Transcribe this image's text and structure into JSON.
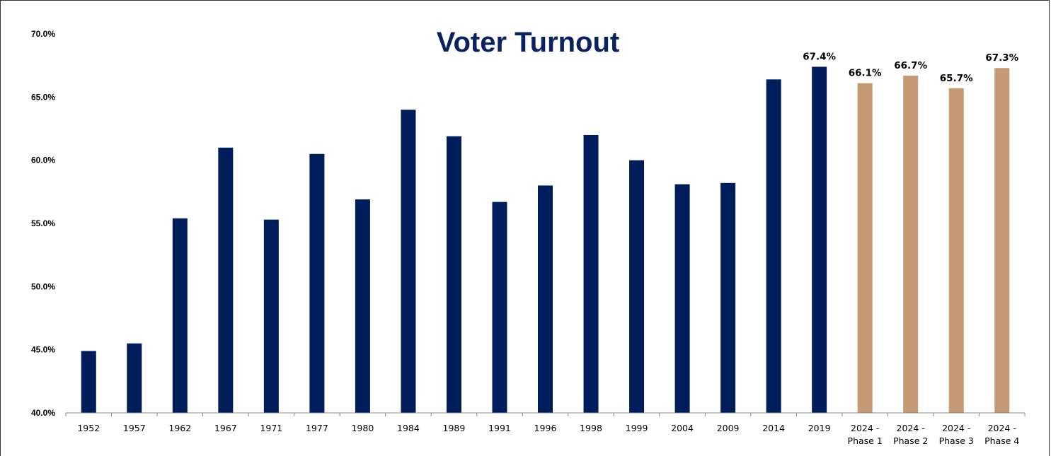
{
  "chart_data": {
    "type": "bar",
    "title": "Voter Turnout",
    "xlabel": "",
    "ylabel": "",
    "ylim": [
      40,
      70
    ],
    "yticks": [
      "40.0%",
      "45.0%",
      "50.0%",
      "55.0%",
      "60.0%",
      "65.0%",
      "70.0%"
    ],
    "ytick_values": [
      40,
      45,
      50,
      55,
      60,
      65,
      70
    ],
    "grid": false,
    "colors": {
      "historic": "#001d5b",
      "phase": "#c49a72",
      "title": "#0b2260"
    },
    "categories": [
      [
        "1952"
      ],
      [
        "1957"
      ],
      [
        "1962"
      ],
      [
        "1967"
      ],
      [
        "1971"
      ],
      [
        "1977"
      ],
      [
        "1980"
      ],
      [
        "1984"
      ],
      [
        "1989"
      ],
      [
        "1991"
      ],
      [
        "1996"
      ],
      [
        "1998"
      ],
      [
        "1999"
      ],
      [
        "2004"
      ],
      [
        "2009"
      ],
      [
        "2014"
      ],
      [
        "2019"
      ],
      [
        "2024 -",
        "Phase 1"
      ],
      [
        "2024 -",
        "Phase 2"
      ],
      [
        "2024 -",
        "Phase 3"
      ],
      [
        "2024 -",
        "Phase 4"
      ]
    ],
    "values": [
      44.9,
      45.5,
      55.4,
      61.0,
      55.3,
      60.5,
      56.9,
      64.0,
      61.9,
      56.7,
      58.0,
      62.0,
      60.0,
      58.1,
      58.2,
      66.4,
      67.4,
      66.1,
      66.7,
      65.7,
      67.3
    ],
    "series_group": [
      "historic",
      "historic",
      "historic",
      "historic",
      "historic",
      "historic",
      "historic",
      "historic",
      "historic",
      "historic",
      "historic",
      "historic",
      "historic",
      "historic",
      "historic",
      "historic",
      "historic",
      "phase",
      "phase",
      "phase",
      "phase"
    ],
    "data_labels": [
      "",
      "",
      "",
      "",
      "",
      "",
      "",
      "",
      "",
      "",
      "",
      "",
      "",
      "",
      "",
      "",
      "67.4%",
      "66.1%",
      "66.7%",
      "65.7%",
      "67.3%"
    ]
  }
}
